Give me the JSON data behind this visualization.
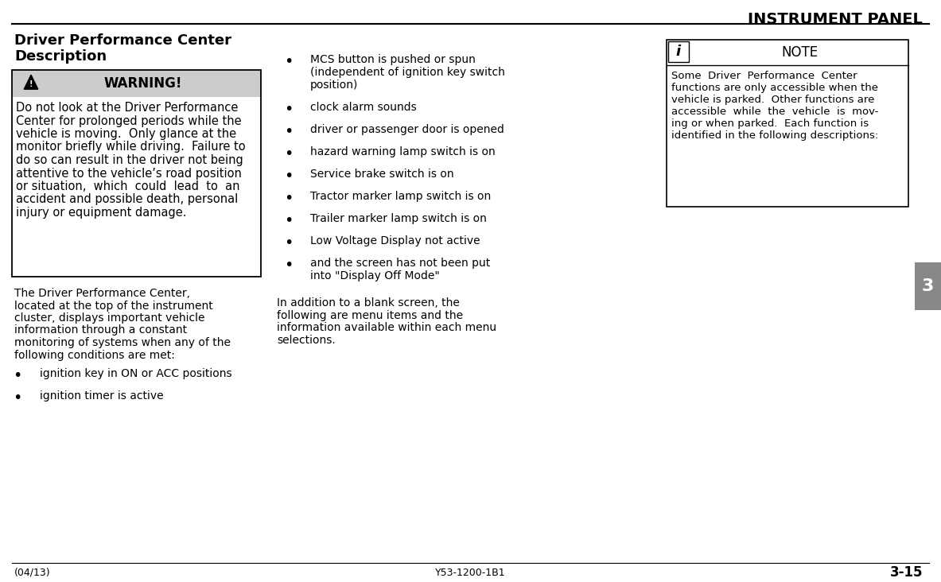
{
  "title": "INSTRUMENT PANEL",
  "section_title_line1": "Driver Performance Center",
  "section_title_line2": "Description",
  "warning_header": "WARNING!",
  "warning_lines": [
    "Do not look at the Driver Performance",
    "Center for prolonged periods while the",
    "vehicle is moving.  Only glance at the",
    "monitor briefly while driving.  Failure to",
    "do so can result in the driver not being",
    "attentive to the vehicle’s road position",
    "or situation,  which  could  lead  to  an",
    "accident and possible death, personal",
    "injury or equipment damage."
  ],
  "body_lines": [
    "The Driver Performance Center,",
    "located at the top of the instrument",
    "cluster, displays important vehicle",
    "information through a constant",
    "monitoring of systems when any of the",
    "following conditions are met:"
  ],
  "bullet_col1": [
    "ignition key in ON or ACC positions",
    "ignition timer is active"
  ],
  "bullet_col2": [
    [
      "MCS button is pushed or spun",
      "(independent of ignition key switch",
      "position)"
    ],
    [
      "clock alarm sounds"
    ],
    [
      "driver or passenger door is opened"
    ],
    [
      "hazard warning lamp switch is on"
    ],
    [
      "Service brake switch is on"
    ],
    [
      "Tractor marker lamp switch is on"
    ],
    [
      "Trailer marker lamp switch is on"
    ],
    [
      "Low Voltage Display not active"
    ],
    [
      "and the screen has not been put",
      "into \"Display Off Mode\""
    ]
  ],
  "addition_lines": [
    "In addition to a blank screen, the",
    "following are menu items and the",
    "information available within each menu",
    "selections."
  ],
  "note_header": "NOTE",
  "note_body_lines": [
    "Some  Driver  Performance  Center",
    "functions are only accessible when the",
    "vehicle is parked.  Other functions are",
    "accessible  while  the  vehicle  is  mov-",
    "ing or when parked.  Each function is",
    "identified in the following descriptions:"
  ],
  "tab_number": "3",
  "footer_left": "(04/13)",
  "footer_center": "Y53-1200-1B1",
  "footer_right": "3-15",
  "bg_color": "#ffffff",
  "warning_header_bg": "#cccccc",
  "text_color": "#000000"
}
